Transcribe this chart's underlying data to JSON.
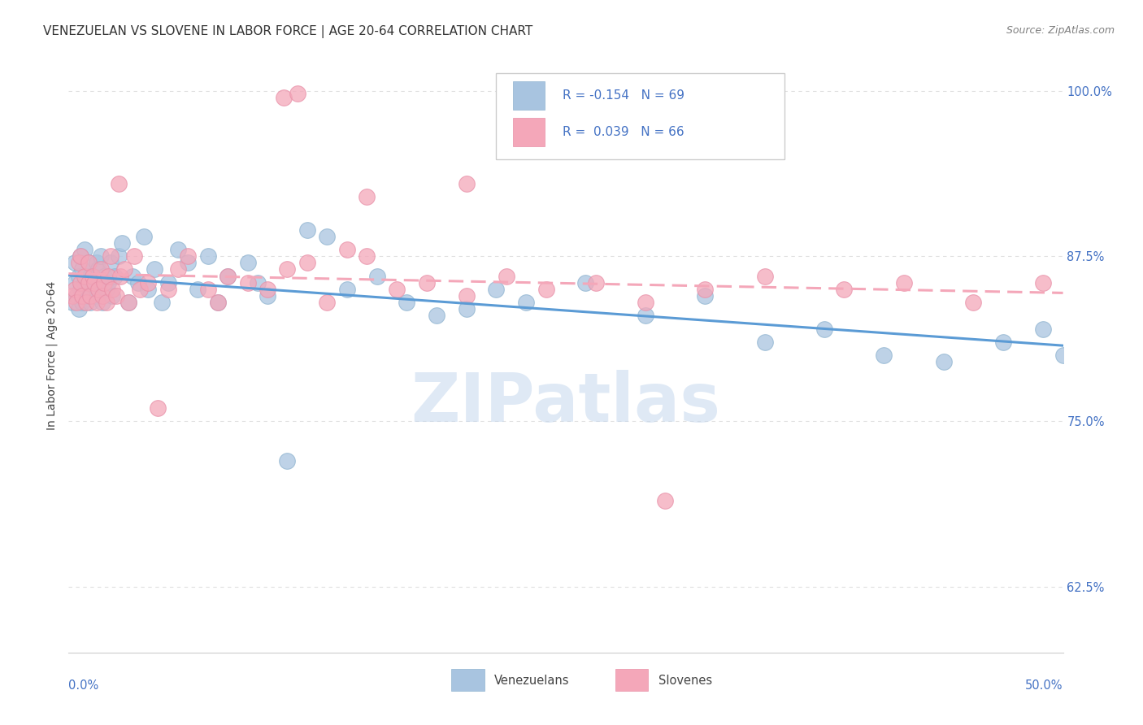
{
  "title": "VENEZUELAN VS SLOVENE IN LABOR FORCE | AGE 20-64 CORRELATION CHART",
  "source": "Source: ZipAtlas.com",
  "ylabel": "In Labor Force | Age 20-64",
  "xlim": [
    0.0,
    0.5
  ],
  "ylim": [
    0.575,
    1.025
  ],
  "ytick_positions": [
    0.625,
    0.75,
    0.875,
    1.0
  ],
  "ytick_labels": [
    "62.5%",
    "75.0%",
    "87.5%",
    "100.0%"
  ],
  "watermark": "ZIPatlas",
  "blue_color": "#a8c4e0",
  "pink_color": "#f4a7b9",
  "blue_line_color": "#5b9bd5",
  "pink_line_color": "#f4a7b9",
  "venezuelan_label": "Venezuelans",
  "slovene_label": "Slovenes",
  "background_color": "#ffffff",
  "grid_color": "#e0e0e0",
  "title_fontsize": 11,
  "label_fontsize": 10,
  "tick_fontsize": 10,
  "right_ytick_color": "#4472c4",
  "legend_text_color": "#4472c4",
  "legend_r_color": "#4472c4",
  "source_color": "#808080"
}
